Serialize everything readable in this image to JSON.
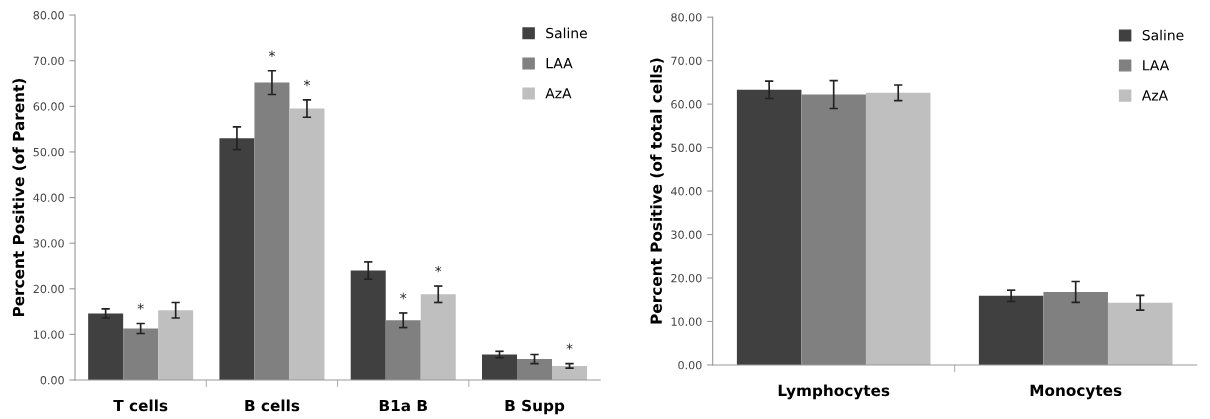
{
  "chart_data": [
    {
      "type": "bar",
      "ylabel": "Percent Positive (of Parent)",
      "categories": [
        "T cells",
        "B cells",
        "B1a B",
        "B Supp"
      ],
      "series": [
        {
          "name": "Saline",
          "color": "#404040",
          "values": [
            14.6,
            53.0,
            24.0,
            5.6
          ],
          "errors": [
            1.0,
            2.5,
            1.9,
            0.7
          ],
          "value_labels": [
            null,
            null,
            null,
            null
          ]
        },
        {
          "name": "LAA",
          "color": "#808080",
          "values": [
            11.3,
            65.2,
            13.1,
            4.6
          ],
          "errors": [
            1.1,
            2.6,
            1.6,
            1.0
          ],
          "value_labels": [
            "*",
            "*",
            "*",
            null
          ]
        },
        {
          "name": "AzA",
          "color": "#bfbfbf",
          "values": [
            15.3,
            59.5,
            18.8,
            3.1
          ],
          "errors": [
            1.7,
            1.9,
            1.8,
            0.5
          ],
          "value_labels": [
            null,
            "*",
            "*",
            "*"
          ]
        }
      ],
      "ylim": [
        0,
        80
      ],
      "yticks": [
        {
          "value": 0,
          "label": "0.00"
        },
        {
          "value": 10,
          "label": "10.00"
        },
        {
          "value": 20,
          "label": "20.00"
        },
        {
          "value": 30,
          "label": "30.00"
        },
        {
          "value": 40,
          "label": "40.00"
        },
        {
          "value": 50,
          "label": "50.00"
        },
        {
          "value": 60,
          "label": "60.00"
        },
        {
          "value": 70,
          "label": "70.00"
        },
        {
          "value": 80,
          "label": "80.00"
        }
      ],
      "grid": false,
      "legend": "top right"
    },
    {
      "type": "bar",
      "ylabel": "Percent Positive (of total cells)",
      "categories": [
        "Lymphocytes",
        "Monocytes"
      ],
      "series": [
        {
          "name": "Saline",
          "color": "#404040",
          "values": [
            63.3,
            15.9
          ],
          "errors": [
            2.0,
            1.3
          ]
        },
        {
          "name": "LAA",
          "color": "#808080",
          "values": [
            62.2,
            16.8
          ],
          "errors": [
            3.2,
            2.4
          ]
        },
        {
          "name": "AzA",
          "color": "#bfbfbf",
          "values": [
            62.6,
            14.3
          ],
          "errors": [
            1.8,
            1.7
          ]
        }
      ],
      "ylim": [
        0,
        80
      ],
      "yticks": [
        {
          "value": 0,
          "label": "0.00"
        },
        {
          "value": 10,
          "label": "10.00"
        },
        {
          "value": 20,
          "label": "20.00"
        },
        {
          "value": 30,
          "label": "30.00"
        },
        {
          "value": 40,
          "label": "40.00"
        },
        {
          "value": 50,
          "label": "50.00"
        },
        {
          "value": 60,
          "label": "60.00"
        },
        {
          "value": 70,
          "label": "70.00"
        },
        {
          "value": 80,
          "label": "80.00"
        }
      ],
      "grid": false,
      "legend": "top right"
    }
  ]
}
